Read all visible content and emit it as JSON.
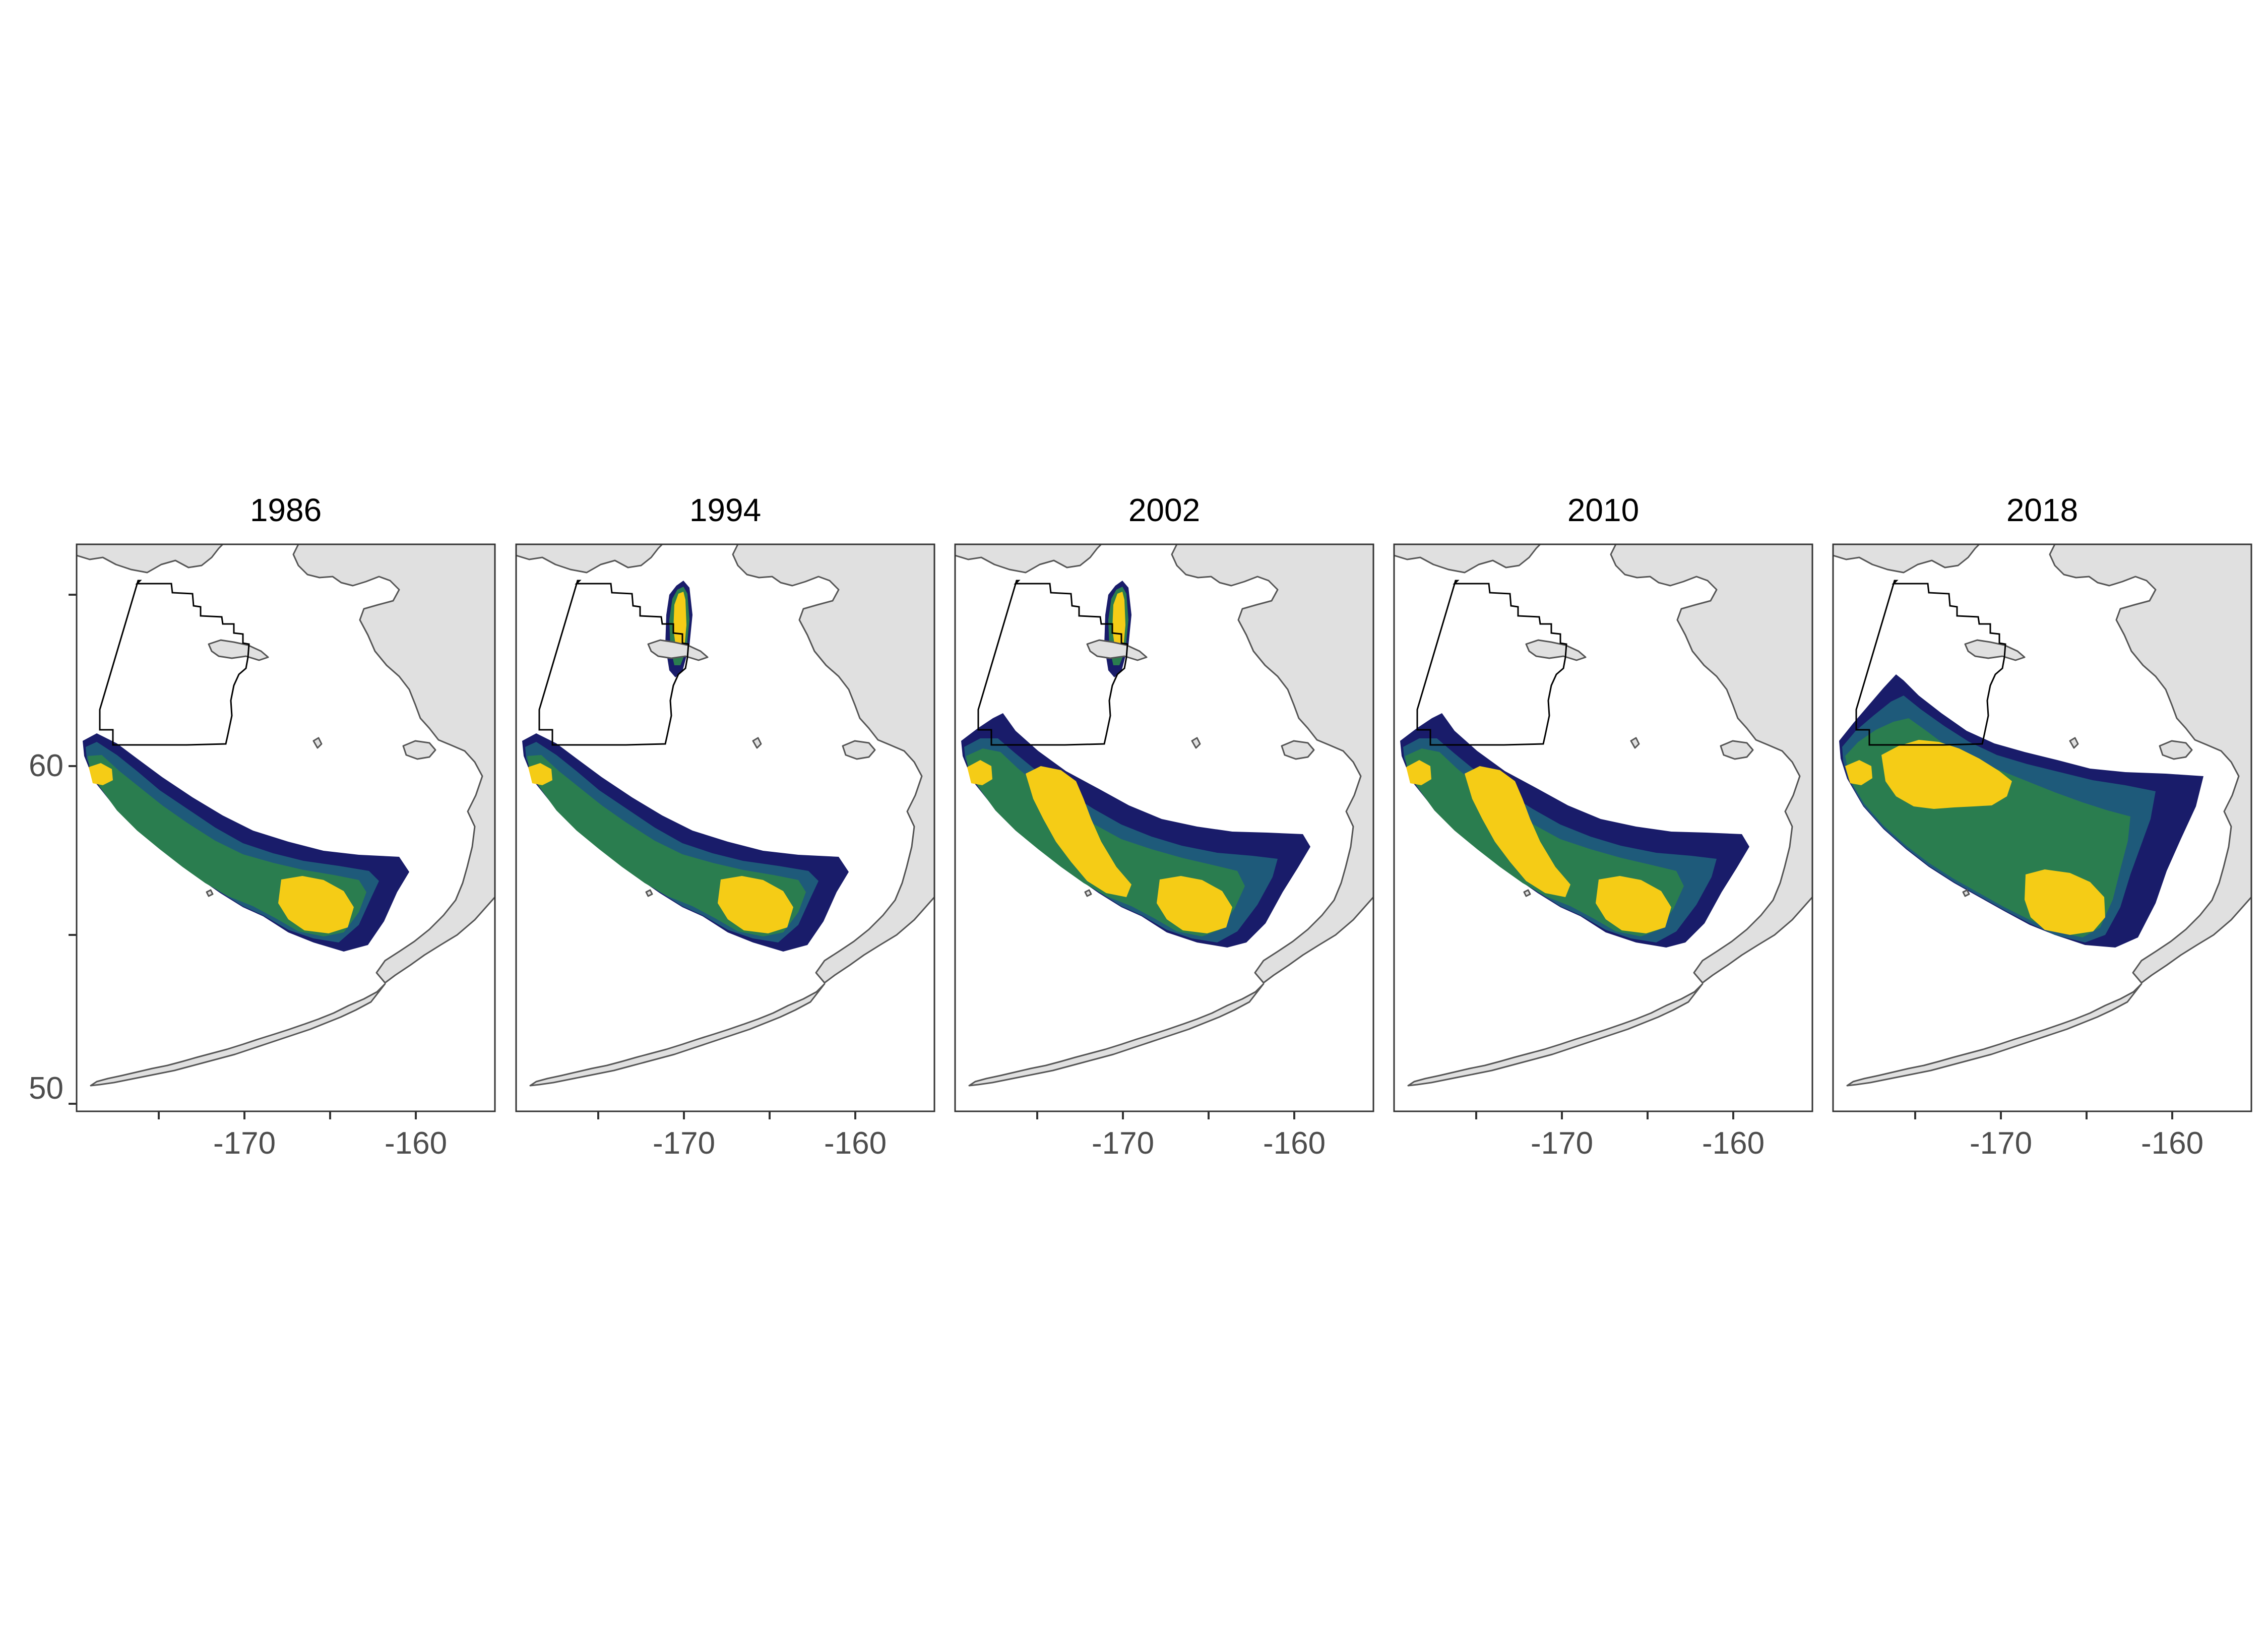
{
  "panels": [
    {
      "title": "1986",
      "northern_patch": false,
      "variant": "narrow"
    },
    {
      "title": "1994",
      "northern_patch": true,
      "variant": "narrow"
    },
    {
      "title": "2002",
      "northern_patch": true,
      "variant": "medium"
    },
    {
      "title": "2010",
      "northern_patch": false,
      "variant": "medium"
    },
    {
      "title": "2018",
      "northern_patch": false,
      "variant": "wide"
    }
  ],
  "x_ticks": [
    "-170",
    "-160"
  ],
  "y_ticks": [
    "60",
    "50"
  ],
  "colors": {
    "land": "#e0e0e0",
    "coast": "#555555",
    "band_outer": "#191c6a",
    "band_2": "#1e5a7a",
    "band_3": "#2a7d4f",
    "band_core": "#f5cc16"
  }
}
